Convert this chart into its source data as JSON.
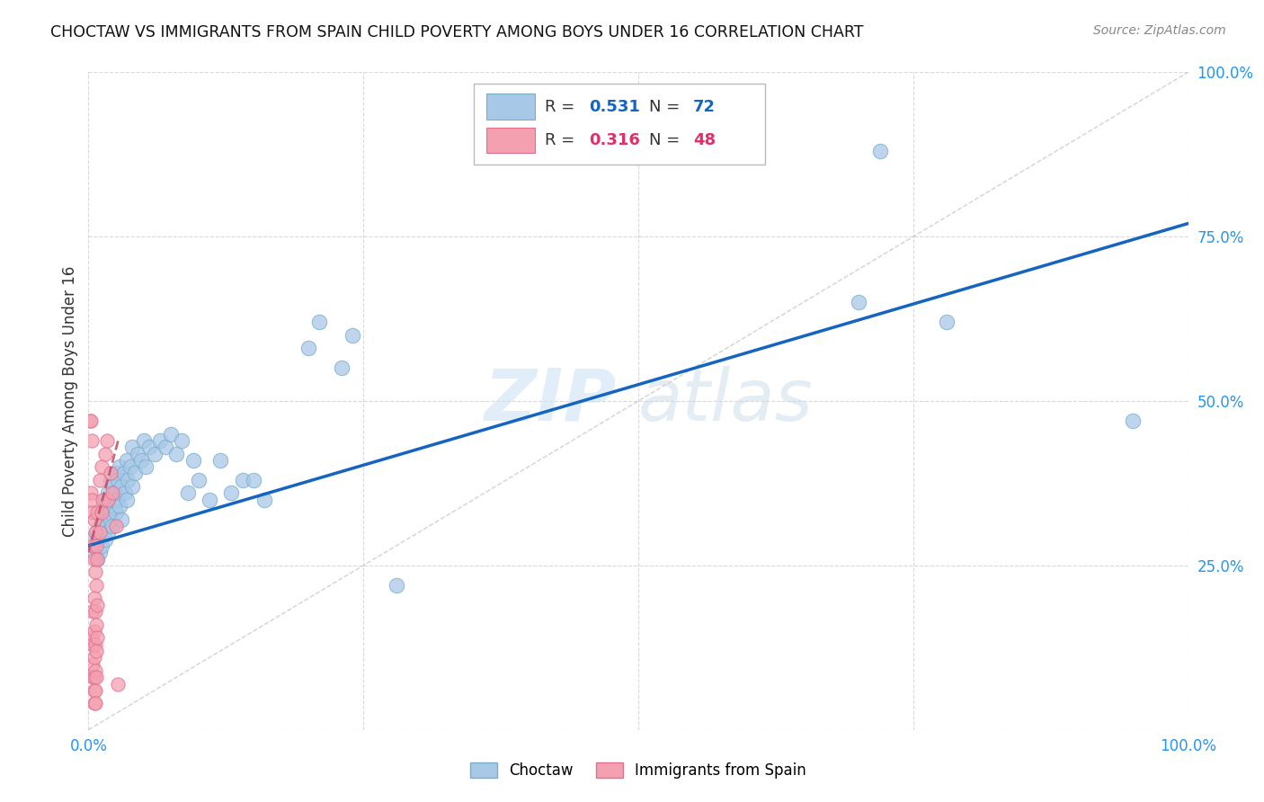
{
  "title": "CHOCTAW VS IMMIGRANTS FROM SPAIN CHILD POVERTY AMONG BOYS UNDER 16 CORRELATION CHART",
  "source": "Source: ZipAtlas.com",
  "ylabel": "Child Poverty Among Boys Under 16",
  "xlim": [
    0,
    1
  ],
  "ylim": [
    0,
    1
  ],
  "choctaw_color": "#a8c8e8",
  "choctaw_edge": "#7aaec8",
  "spain_color": "#f4a0b0",
  "spain_edge": "#e07090",
  "trendline_blue_color": "#1565C0",
  "trendline_pink_color": "#c0506a",
  "diagonal_color": "#c8c8c8",
  "R_choctaw": 0.531,
  "N_choctaw": 72,
  "R_spain": 0.316,
  "N_spain": 48,
  "choctaw_scatter": [
    [
      0.003,
      0.29
    ],
    [
      0.005,
      0.27
    ],
    [
      0.006,
      0.28
    ],
    [
      0.007,
      0.3
    ],
    [
      0.008,
      0.26
    ],
    [
      0.009,
      0.29
    ],
    [
      0.01,
      0.31
    ],
    [
      0.01,
      0.27
    ],
    [
      0.012,
      0.33
    ],
    [
      0.012,
      0.28
    ],
    [
      0.013,
      0.3
    ],
    [
      0.014,
      0.32
    ],
    [
      0.015,
      0.35
    ],
    [
      0.015,
      0.29
    ],
    [
      0.016,
      0.34
    ],
    [
      0.017,
      0.31
    ],
    [
      0.018,
      0.36
    ],
    [
      0.018,
      0.3
    ],
    [
      0.019,
      0.33
    ],
    [
      0.02,
      0.38
    ],
    [
      0.02,
      0.32
    ],
    [
      0.021,
      0.35
    ],
    [
      0.022,
      0.37
    ],
    [
      0.022,
      0.31
    ],
    [
      0.023,
      0.34
    ],
    [
      0.024,
      0.36
    ],
    [
      0.025,
      0.39
    ],
    [
      0.025,
      0.33
    ],
    [
      0.026,
      0.35
    ],
    [
      0.027,
      0.38
    ],
    [
      0.028,
      0.4
    ],
    [
      0.028,
      0.34
    ],
    [
      0.03,
      0.37
    ],
    [
      0.03,
      0.32
    ],
    [
      0.032,
      0.39
    ],
    [
      0.033,
      0.36
    ],
    [
      0.035,
      0.41
    ],
    [
      0.035,
      0.35
    ],
    [
      0.036,
      0.38
    ],
    [
      0.038,
      0.4
    ],
    [
      0.04,
      0.43
    ],
    [
      0.04,
      0.37
    ],
    [
      0.042,
      0.39
    ],
    [
      0.045,
      0.42
    ],
    [
      0.048,
      0.41
    ],
    [
      0.05,
      0.44
    ],
    [
      0.052,
      0.4
    ],
    [
      0.055,
      0.43
    ],
    [
      0.06,
      0.42
    ],
    [
      0.065,
      0.44
    ],
    [
      0.07,
      0.43
    ],
    [
      0.075,
      0.45
    ],
    [
      0.08,
      0.42
    ],
    [
      0.085,
      0.44
    ],
    [
      0.09,
      0.36
    ],
    [
      0.095,
      0.41
    ],
    [
      0.1,
      0.38
    ],
    [
      0.11,
      0.35
    ],
    [
      0.12,
      0.41
    ],
    [
      0.13,
      0.36
    ],
    [
      0.14,
      0.38
    ],
    [
      0.15,
      0.38
    ],
    [
      0.16,
      0.35
    ],
    [
      0.2,
      0.58
    ],
    [
      0.21,
      0.62
    ],
    [
      0.23,
      0.55
    ],
    [
      0.24,
      0.6
    ],
    [
      0.28,
      0.22
    ],
    [
      0.7,
      0.65
    ],
    [
      0.72,
      0.88
    ],
    [
      0.78,
      0.62
    ],
    [
      0.95,
      0.47
    ]
  ],
  "spain_scatter": [
    [
      0.001,
      0.47
    ],
    [
      0.002,
      0.47
    ],
    [
      0.002,
      0.36
    ],
    [
      0.003,
      0.44
    ],
    [
      0.003,
      0.35
    ],
    [
      0.003,
      0.14
    ],
    [
      0.004,
      0.33
    ],
    [
      0.004,
      0.28
    ],
    [
      0.004,
      0.18
    ],
    [
      0.004,
      0.13
    ],
    [
      0.004,
      0.1
    ],
    [
      0.004,
      0.08
    ],
    [
      0.005,
      0.32
    ],
    [
      0.005,
      0.26
    ],
    [
      0.005,
      0.2
    ],
    [
      0.005,
      0.15
    ],
    [
      0.005,
      0.11
    ],
    [
      0.005,
      0.08
    ],
    [
      0.005,
      0.06
    ],
    [
      0.005,
      0.04
    ],
    [
      0.006,
      0.3
    ],
    [
      0.006,
      0.24
    ],
    [
      0.006,
      0.18
    ],
    [
      0.006,
      0.13
    ],
    [
      0.006,
      0.09
    ],
    [
      0.006,
      0.06
    ],
    [
      0.006,
      0.04
    ],
    [
      0.007,
      0.28
    ],
    [
      0.007,
      0.22
    ],
    [
      0.007,
      0.16
    ],
    [
      0.007,
      0.12
    ],
    [
      0.007,
      0.08
    ],
    [
      0.008,
      0.33
    ],
    [
      0.008,
      0.26
    ],
    [
      0.008,
      0.19
    ],
    [
      0.008,
      0.14
    ],
    [
      0.01,
      0.38
    ],
    [
      0.01,
      0.3
    ],
    [
      0.012,
      0.4
    ],
    [
      0.012,
      0.33
    ],
    [
      0.013,
      0.35
    ],
    [
      0.015,
      0.42
    ],
    [
      0.017,
      0.44
    ],
    [
      0.018,
      0.35
    ],
    [
      0.02,
      0.39
    ],
    [
      0.022,
      0.36
    ],
    [
      0.025,
      0.31
    ],
    [
      0.027,
      0.07
    ]
  ],
  "choctaw_trend_x": [
    0.0,
    1.0
  ],
  "choctaw_trend_y": [
    0.28,
    0.77
  ],
  "spain_trend_x": [
    0.0,
    0.027
  ],
  "spain_trend_y": [
    0.27,
    0.44
  ],
  "watermark_zip": "ZIP",
  "watermark_atlas": "atlas",
  "background_color": "#ffffff",
  "grid_color": "#d0d0d0",
  "ytick_color": "#2196F3",
  "xtick_color": "#2196F3"
}
